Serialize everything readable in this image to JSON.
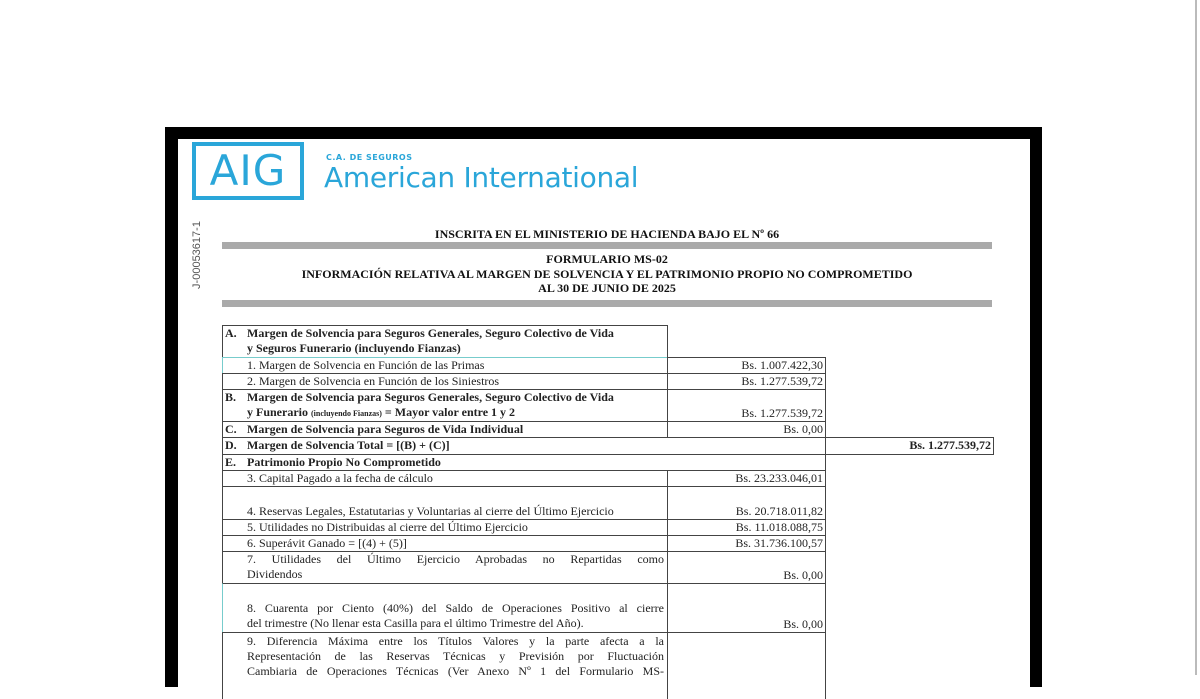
{
  "logo": {
    "mark": "AIG",
    "company_prefix": "C.A. DE SEGUROS",
    "company_name": "American International",
    "color": "#2aa6d9"
  },
  "rif": "J-00053617-1",
  "header": {
    "registration": "INSCRITA EN EL MINISTERIO DE HACIENDA BAJO EL Nº 66",
    "form": "FORMULARIO MS-02",
    "title": "INFORMACIÓN RELATIVA AL MARGEN DE SOLVENCIA Y EL PATRIMONIO PROPIO NO COMPROMETIDO",
    "date": "AL 30 DE JUNIO  DE  2025"
  },
  "rows": [
    {
      "letter": "A.",
      "label_l1": "Margen de Solvencia para Seguros Generales, Seguro Colectivo de Vida",
      "label_l2": "y Seguros Funerario (incluyendo Fianzas)"
    },
    {
      "label": "1. Margen de Solvencia en Función de las Primas",
      "amount": "Bs. 1.007.422,30"
    },
    {
      "label": "2. Margen de Solvencia en Función de los Siniestros",
      "amount": "Bs. 1.277.539,72"
    },
    {
      "letter": "B.",
      "label_l1": "Margen de Solvencia para Seguros Generales, Seguro Colectivo de Vida",
      "label_l2a": "y Funerario ",
      "label_small": "(incluyendo Fianzas)",
      "label_l2b": " = Mayor valor entre 1 y 2",
      "amount": "Bs. 1.277.539,72"
    },
    {
      "letter": "C.",
      "label": "Margen de Solvencia para Seguros de Vida Individual",
      "amount": "Bs. 0,00"
    },
    {
      "letter": "D.",
      "label": "Margen de Solvencia Total = [(B) + (C)]",
      "total": "Bs. 1.277.539,72"
    },
    {
      "letter": "E.",
      "label": "Patrimonio Propio No Comprometido"
    },
    {
      "label": "3. Capital Pagado a la fecha de cálculo",
      "amount": "Bs. 23.233.046,01"
    },
    {
      "label": "4. Reservas Legales, Estatutarias y Voluntarias al cierre del Último Ejercicio",
      "amount": "Bs. 20.718.011,82"
    },
    {
      "label": "5.   Utilidades no Distribuidas al cierre del Último Ejercicio",
      "amount": "Bs. 11.018.088,75"
    },
    {
      "label": "6. Superávit Ganado = [(4) + (5)]",
      "amount": "Bs. 31.736.100,57"
    },
    {
      "label_l1": "7. Utilidades del Último Ejercicio Aprobadas no Repartidas como",
      "label_l2": "Dividendos",
      "amount": "Bs. 0,00"
    },
    {
      "label_l1": "8.   Cuarenta por Ciento (40%) del Saldo de Operaciones Positivo al cierre",
      "label_l2": "del trimestre (No llenar esta Casilla para el último Trimestre del Año).",
      "amount": "Bs. 0,00"
    },
    {
      "label_l1": "9. Diferencia Máxima entre los Títulos Valores y la parte afecta a la",
      "label_l2": "Representación de las Reservas Técnicas y Previsión por Fluctuación",
      "label_l3": "Cambiaria de Operaciones Técnicas (Ver Anexo Nº 1 del Formulario MS-"
    }
  ]
}
